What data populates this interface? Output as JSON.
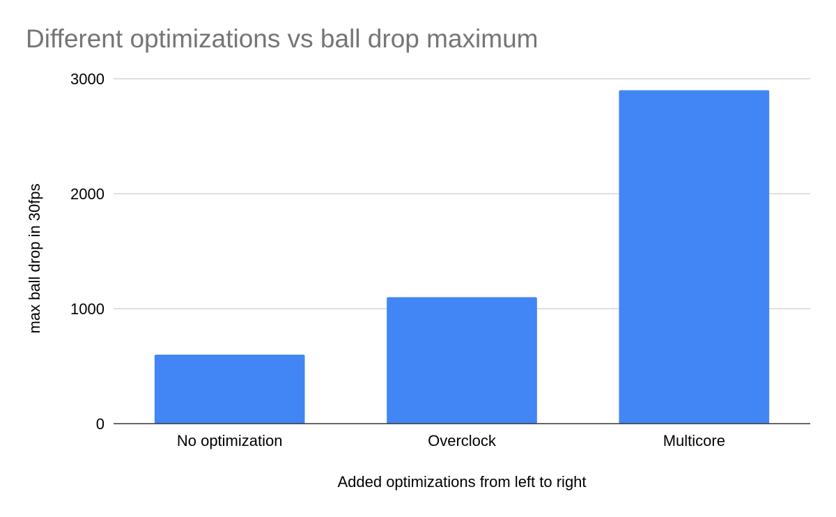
{
  "chart_data": {
    "type": "bar",
    "title": "Different optimizations vs ball drop maximum",
    "xlabel": "Added optimizations from left to right",
    "ylabel": "max ball drop in 30fps",
    "categories": [
      "No optimization",
      "Overclock",
      "Multicore"
    ],
    "values": [
      600,
      1100,
      2900
    ],
    "ylim": [
      0,
      3000
    ],
    "yticks": [
      "0",
      "1000",
      "2000",
      "3000"
    ],
    "grid": true,
    "legend": "none",
    "bar_color": "#4285f4"
  }
}
